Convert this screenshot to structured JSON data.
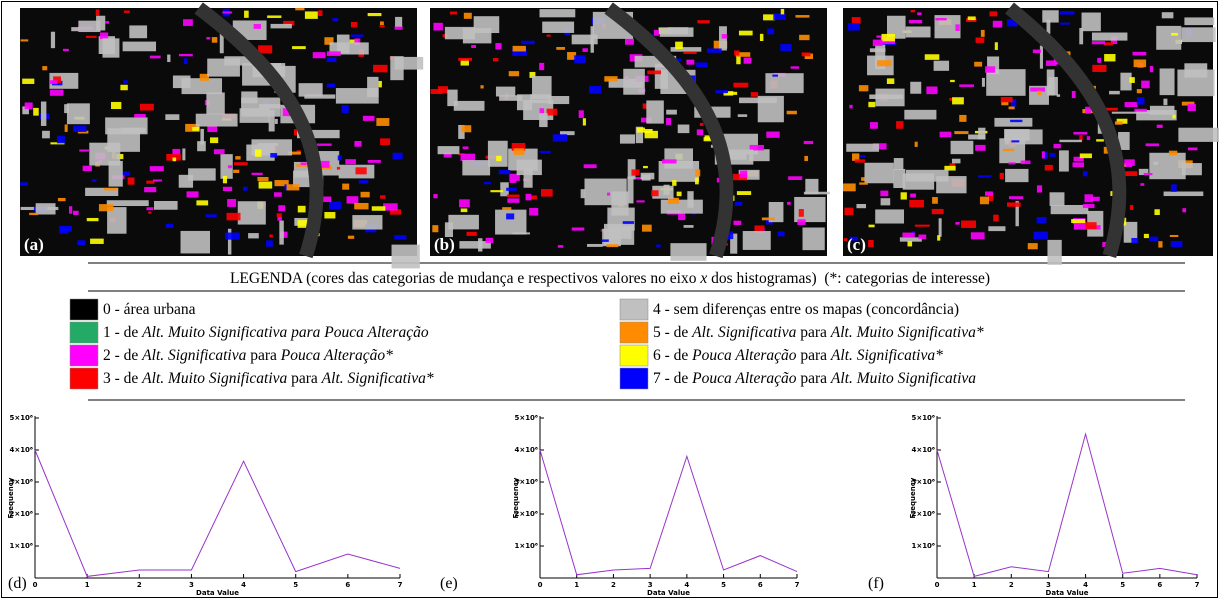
{
  "maps": [
    {
      "label": "(a)"
    },
    {
      "label": "(b)"
    },
    {
      "label": "(c)"
    }
  ],
  "legend": {
    "title": [
      {
        "text": "LEGENDA (cores das categorias de mudança e respectivos valores no eixo ",
        "italic": false
      },
      {
        "text": "x",
        "italic": true
      },
      {
        "text": " dos histogramas)  (*: categorias de interesse)",
        "italic": false
      }
    ],
    "entries": [
      {
        "color": "#000000",
        "parts": [
          {
            "text": "0 - área urbana",
            "italic": false
          }
        ]
      },
      {
        "color": "#22aa66",
        "parts": [
          {
            "text": "1 - de ",
            "italic": false
          },
          {
            "text": "Alt. Muito Significativa para Pouca Alteração",
            "italic": true
          }
        ]
      },
      {
        "color": "#ff00ff",
        "parts": [
          {
            "text": "2 - de ",
            "italic": false
          },
          {
            "text": "Alt. Significativa",
            "italic": true
          },
          {
            "text": " para ",
            "italic": false
          },
          {
            "text": "Pouca Alteração*",
            "italic": true
          }
        ]
      },
      {
        "color": "#ff0000",
        "parts": [
          {
            "text": "3 - de ",
            "italic": false
          },
          {
            "text": "Alt. Muito Significativa",
            "italic": true
          },
          {
            "text": " para ",
            "italic": false
          },
          {
            "text": "Alt. Significativa*",
            "italic": true
          }
        ]
      },
      {
        "color": "#c0c0c0",
        "parts": [
          {
            "text": "4 - sem diferenças entre os mapas (concordância)",
            "italic": false
          }
        ]
      },
      {
        "color": "#ff8c00",
        "parts": [
          {
            "text": "5 - de ",
            "italic": false
          },
          {
            "text": "Alt. Significativa",
            "italic": true
          },
          {
            "text": " para ",
            "italic": false
          },
          {
            "text": "Alt. Muito Significativa*",
            "italic": true
          }
        ]
      },
      {
        "color": "#ffff00",
        "parts": [
          {
            "text": "6 - de ",
            "italic": false
          },
          {
            "text": "Pouca Alteração",
            "italic": true
          },
          {
            "text": " para ",
            "italic": false
          },
          {
            "text": "Alt. Significativa*",
            "italic": true
          }
        ]
      },
      {
        "color": "#0000ff",
        "parts": [
          {
            "text": "7 - de ",
            "italic": false
          },
          {
            "text": "Pouca Alteração",
            "italic": true
          },
          {
            "text": " para ",
            "italic": false
          },
          {
            "text": "Alt. Muito Significativa",
            "italic": true
          }
        ]
      }
    ]
  },
  "chart_data": [
    {
      "type": "line",
      "label": "(d)",
      "xlabel": "Data Value",
      "ylabel": "Frequency",
      "color": "#9933cc",
      "x": [
        0,
        1,
        2,
        3,
        4,
        5,
        6,
        7
      ],
      "values": [
        4000000,
        50000,
        250000,
        250000,
        3650000,
        200000,
        750000,
        300000
      ],
      "xlim": [
        0,
        7
      ],
      "xticks": [
        0,
        1,
        2,
        3,
        4,
        5,
        6,
        7
      ],
      "ylim": [
        0,
        5000000
      ],
      "yticks": [
        {
          "value": 1000000,
          "label": "1×10⁶"
        },
        {
          "value": 2000000,
          "label": "2×10⁶"
        },
        {
          "value": 3000000,
          "label": "3×10⁶"
        },
        {
          "value": 4000000,
          "label": "4×10⁶"
        },
        {
          "value": 5000000,
          "label": "5×10⁶"
        }
      ]
    },
    {
      "type": "line",
      "label": "(e)",
      "xlabel": "Data Value",
      "ylabel": "Frequency",
      "color": "#9933cc",
      "x": [
        0,
        1,
        2,
        3,
        4,
        5,
        6,
        7
      ],
      "values": [
        4000000,
        100000,
        250000,
        300000,
        3800000,
        250000,
        700000,
        200000
      ],
      "xlim": [
        0,
        7
      ],
      "xticks": [
        0,
        1,
        2,
        3,
        4,
        5,
        6,
        7
      ],
      "ylim": [
        0,
        5000000
      ],
      "yticks": [
        {
          "value": 1000000,
          "label": "1×10⁶"
        },
        {
          "value": 2000000,
          "label": "2×10⁶"
        },
        {
          "value": 3000000,
          "label": "3×10⁶"
        },
        {
          "value": 4000000,
          "label": "4×10⁶"
        },
        {
          "value": 5000000,
          "label": "5×10⁶"
        }
      ]
    },
    {
      "type": "line",
      "label": "(f)",
      "xlabel": "Data Value",
      "ylabel": "Frequency",
      "color": "#9933cc",
      "x": [
        0,
        1,
        2,
        3,
        4,
        5,
        6,
        7
      ],
      "values": [
        4000000,
        50000,
        350000,
        200000,
        4500000,
        150000,
        300000,
        100000
      ],
      "xlim": [
        0,
        7
      ],
      "xticks": [
        0,
        1,
        2,
        3,
        4,
        5,
        6,
        7
      ],
      "ylim": [
        0,
        5000000
      ],
      "yticks": [
        {
          "value": 1000000,
          "label": "1×10⁶"
        },
        {
          "value": 2000000,
          "label": "2×10⁶"
        },
        {
          "value": 3000000,
          "label": "3×10⁶"
        },
        {
          "value": 4000000,
          "label": "4×10⁶"
        },
        {
          "value": 5000000,
          "label": "5×10⁶"
        }
      ]
    }
  ]
}
